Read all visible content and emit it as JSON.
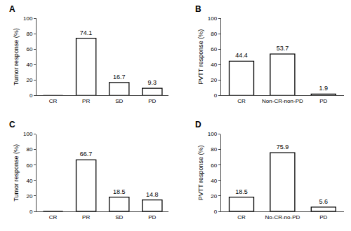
{
  "chart_data": [
    {
      "type": "bar",
      "title": "A",
      "categories": [
        "CR",
        "PR",
        "SD",
        "PD"
      ],
      "values": [
        0,
        74.1,
        16.7,
        9.3
      ],
      "data_labels": true,
      "value_labels": [
        null,
        "74.1",
        "16.7",
        "9.3"
      ],
      "ylabel": "Tumor response (%)",
      "color": "#ffffff",
      "ylim": [
        0,
        100
      ],
      "yticks": [
        0,
        20,
        40,
        60,
        80,
        100
      ],
      "grid": false
    },
    {
      "type": "bar",
      "title": "B",
      "categories": [
        "CR",
        "Non-CR-non-PD",
        "PD"
      ],
      "values": [
        44.4,
        53.7,
        1.9
      ],
      "data_labels": true,
      "value_labels": [
        "44.4",
        "53.7",
        "1.9"
      ],
      "ylabel": "PVTT response (%)",
      "color": "#ffffff",
      "ylim": [
        0,
        100
      ],
      "yticks": [
        0,
        20,
        40,
        60,
        80,
        100
      ],
      "grid": false
    },
    {
      "type": "bar",
      "title": "C",
      "categories": [
        "CR",
        "PR",
        "SD",
        "PD"
      ],
      "values": [
        0,
        66.7,
        18.5,
        14.8
      ],
      "data_labels": true,
      "value_labels": [
        null,
        "66.7",
        "18.5",
        "14.8"
      ],
      "ylabel": "Tumor response (%)",
      "color": "#ffffff",
      "ylim": [
        0,
        100
      ],
      "yticks": [
        0,
        20,
        40,
        60,
        80,
        100
      ],
      "grid": false
    },
    {
      "type": "bar",
      "title": "D",
      "categories": [
        "CR",
        "No-CR-no-PD",
        "PD"
      ],
      "values": [
        18.5,
        75.9,
        5.6
      ],
      "data_labels": true,
      "value_labels": [
        "18.5",
        "75.9",
        "5.6"
      ],
      "ylabel": "PVTT response (%)",
      "color": "#ffffff",
      "ylim": [
        0,
        100
      ],
      "yticks": [
        0,
        20,
        40,
        60,
        80,
        100
      ],
      "grid": false
    }
  ]
}
